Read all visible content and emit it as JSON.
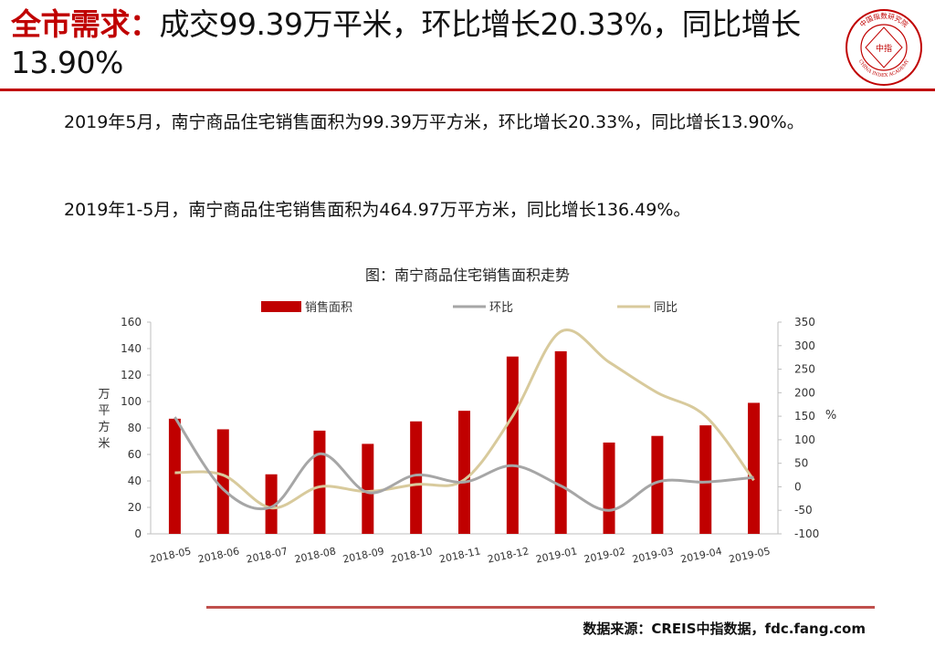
{
  "headline": {
    "emphasis": "全市需求：",
    "rest": "成交99.39万平米，环比增长20.33%，同比增长13.90%"
  },
  "logo": {
    "center": "中指",
    "ring_top": "中国指数研究院",
    "ring_bottom": "CHINA INDEX ACADEMY"
  },
  "body": {
    "p1": "2019年5月，南宁商品住宅销售面积为99.39万平方米，环比增长20.33%，同比增长13.90%。",
    "p2": "2019年1-5月，南宁商品住宅销售面积为464.97万平方米，同比增长136.49%。"
  },
  "chart_title": "图：南宁商品住宅销售面积走势",
  "source": "数据来源：CREIS中指数据，fdc.fang.com",
  "colors": {
    "accent": "#c00000",
    "bar": "#c00000",
    "mom_line": "#a6a6a6",
    "yoy_line": "#d8ca9c",
    "footer_rule": "#c0504d"
  },
  "chart_data": {
    "type": "bar",
    "categories": [
      "2018-05",
      "2018-06",
      "2018-07",
      "2018-08",
      "2018-09",
      "2018-10",
      "2018-11",
      "2018-12",
      "2019-01",
      "2019-02",
      "2019-03",
      "2019-04",
      "2019-05"
    ],
    "series": [
      {
        "name": "销售面积",
        "type": "bar",
        "axis": "left",
        "color": "#c00000",
        "values": [
          87,
          79,
          45,
          78,
          68,
          85,
          93,
          134,
          138,
          69,
          74,
          82,
          99
        ]
      },
      {
        "name": "环比",
        "type": "line",
        "axis": "right",
        "color": "#a6a6a6",
        "values": [
          148,
          -5,
          -43,
          70,
          -12,
          25,
          10,
          45,
          2,
          -50,
          10,
          10,
          20
        ]
      },
      {
        "name": "同比",
        "type": "line",
        "axis": "right",
        "color": "#d8ca9c",
        "values": [
          30,
          25,
          -45,
          0,
          -10,
          5,
          15,
          150,
          330,
          265,
          200,
          150,
          14
        ]
      }
    ],
    "y_left": {
      "label": "万平方米",
      "min": 0,
      "max": 160,
      "ticks": [
        0,
        20,
        40,
        60,
        80,
        100,
        120,
        140,
        160
      ]
    },
    "y_right": {
      "label": "%",
      "min": -100,
      "max": 350,
      "ticks": [
        -100,
        -50,
        0,
        50,
        100,
        150,
        200,
        250,
        300,
        350
      ]
    },
    "legend_position": "top",
    "grid": false
  }
}
